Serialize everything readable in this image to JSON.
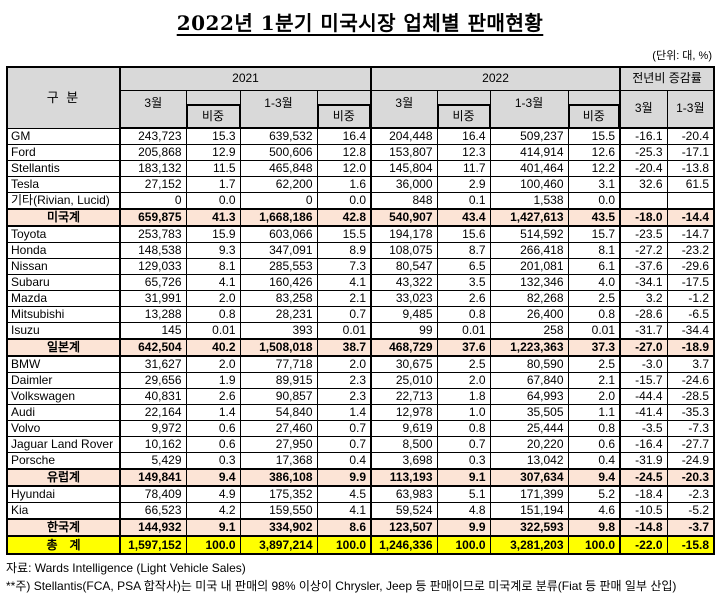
{
  "meta": {
    "title": "2022년 1분기  미국시장  업체별  판매현황",
    "unit_label": "(단위: 대, %)",
    "source_note": "자료: Wards Intelligence (Light Vehicle Sales)",
    "footnote": "**주) Stellantis(FCA, PSA 합작사)는 미국 내 판매의 98% 이상이 Chrysler, Jeep 등 판매이므로 미국계로 분류(Fiat 등 판매 일부 산입)"
  },
  "colors": {
    "header_bg": "#d9d9d9",
    "subtotal_bg": "#fce4d6",
    "total_bg": "#ffff00",
    "border": "#000000"
  },
  "table": {
    "headers": {
      "gubun": "구 분",
      "year_2021": "2021",
      "year_2022": "2022",
      "yoy": "전년비 증감률",
      "month": "3월",
      "share": "비중",
      "quarter": "1-3월"
    },
    "rows": [
      {
        "name": "GM",
        "type": "maker",
        "values": [
          "243,723",
          "15.3",
          "639,532",
          "16.4",
          "204,448",
          "16.4",
          "509,237",
          "15.5",
          "-16.1",
          "-20.4"
        ]
      },
      {
        "name": "Ford",
        "type": "maker",
        "values": [
          "205,868",
          "12.9",
          "500,606",
          "12.8",
          "153,807",
          "12.3",
          "414,914",
          "12.6",
          "-25.3",
          "-17.1"
        ]
      },
      {
        "name": "Stellantis",
        "type": "maker",
        "values": [
          "183,132",
          "11.5",
          "465,848",
          "12.0",
          "145,804",
          "11.7",
          "401,464",
          "12.2",
          "-20.4",
          "-13.8"
        ]
      },
      {
        "name": "Tesla",
        "type": "maker",
        "values": [
          "27,152",
          "1.7",
          "62,200",
          "1.6",
          "36,000",
          "2.9",
          "100,460",
          "3.1",
          "32.6",
          "61.5"
        ]
      },
      {
        "name": "기타(Rivian, Lucid)",
        "type": "maker",
        "values": [
          "0",
          "0.0",
          "0",
          "0.0",
          "848",
          "0.1",
          "1,538",
          "0.0",
          "",
          ""
        ]
      },
      {
        "name": "미국계",
        "type": "subtotal",
        "values": [
          "659,875",
          "41.3",
          "1,668,186",
          "42.8",
          "540,907",
          "43.4",
          "1,427,613",
          "43.5",
          "-18.0",
          "-14.4"
        ]
      },
      {
        "name": "Toyota",
        "type": "maker",
        "values": [
          "253,783",
          "15.9",
          "603,066",
          "15.5",
          "194,178",
          "15.6",
          "514,592",
          "15.7",
          "-23.5",
          "-14.7"
        ]
      },
      {
        "name": "Honda",
        "type": "maker",
        "values": [
          "148,538",
          "9.3",
          "347,091",
          "8.9",
          "108,075",
          "8.7",
          "266,418",
          "8.1",
          "-27.2",
          "-23.2"
        ]
      },
      {
        "name": "Nissan",
        "type": "maker",
        "values": [
          "129,033",
          "8.1",
          "285,553",
          "7.3",
          "80,547",
          "6.5",
          "201,081",
          "6.1",
          "-37.6",
          "-29.6"
        ]
      },
      {
        "name": "Subaru",
        "type": "maker",
        "values": [
          "65,726",
          "4.1",
          "160,426",
          "4.1",
          "43,322",
          "3.5",
          "132,346",
          "4.0",
          "-34.1",
          "-17.5"
        ]
      },
      {
        "name": "Mazda",
        "type": "maker",
        "values": [
          "31,991",
          "2.0",
          "83,258",
          "2.1",
          "33,023",
          "2.6",
          "82,268",
          "2.5",
          "3.2",
          "-1.2"
        ]
      },
      {
        "name": "Mitsubishi",
        "type": "maker",
        "values": [
          "13,288",
          "0.8",
          "28,231",
          "0.7",
          "9,485",
          "0.8",
          "26,400",
          "0.8",
          "-28.6",
          "-6.5"
        ]
      },
      {
        "name": "Isuzu",
        "type": "maker",
        "values": [
          "145",
          "0.01",
          "393",
          "0.01",
          "99",
          "0.01",
          "258",
          "0.01",
          "-31.7",
          "-34.4"
        ]
      },
      {
        "name": "일본계",
        "type": "subtotal",
        "values": [
          "642,504",
          "40.2",
          "1,508,018",
          "38.7",
          "468,729",
          "37.6",
          "1,223,363",
          "37.3",
          "-27.0",
          "-18.9"
        ]
      },
      {
        "name": "BMW",
        "type": "maker",
        "values": [
          "31,627",
          "2.0",
          "77,718",
          "2.0",
          "30,675",
          "2.5",
          "80,590",
          "2.5",
          "-3.0",
          "3.7"
        ]
      },
      {
        "name": "Daimler",
        "type": "maker",
        "values": [
          "29,656",
          "1.9",
          "89,915",
          "2.3",
          "25,010",
          "2.0",
          "67,840",
          "2.1",
          "-15.7",
          "-24.6"
        ]
      },
      {
        "name": "Volkswagen",
        "type": "maker",
        "values": [
          "40,831",
          "2.6",
          "90,857",
          "2.3",
          "22,713",
          "1.8",
          "64,993",
          "2.0",
          "-44.4",
          "-28.5"
        ]
      },
      {
        "name": "Audi",
        "type": "maker",
        "values": [
          "22,164",
          "1.4",
          "54,840",
          "1.4",
          "12,978",
          "1.0",
          "35,505",
          "1.1",
          "-41.4",
          "-35.3"
        ]
      },
      {
        "name": "Volvo",
        "type": "maker",
        "values": [
          "9,972",
          "0.6",
          "27,460",
          "0.7",
          "9,619",
          "0.8",
          "25,444",
          "0.8",
          "-3.5",
          "-7.3"
        ]
      },
      {
        "name": "Jaguar Land Rover",
        "type": "maker",
        "values": [
          "10,162",
          "0.6",
          "27,950",
          "0.7",
          "8,500",
          "0.7",
          "20,220",
          "0.6",
          "-16.4",
          "-27.7"
        ]
      },
      {
        "name": "Porsche",
        "type": "maker",
        "values": [
          "5,429",
          "0.3",
          "17,368",
          "0.4",
          "3,698",
          "0.3",
          "13,042",
          "0.4",
          "-31.9",
          "-24.9"
        ]
      },
      {
        "name": "유럽계",
        "type": "subtotal",
        "values": [
          "149,841",
          "9.4",
          "386,108",
          "9.9",
          "113,193",
          "9.1",
          "307,634",
          "9.4",
          "-24.5",
          "-20.3"
        ]
      },
      {
        "name": "Hyundai",
        "type": "maker",
        "values": [
          "78,409",
          "4.9",
          "175,352",
          "4.5",
          "63,983",
          "5.1",
          "171,399",
          "5.2",
          "-18.4",
          "-2.3"
        ]
      },
      {
        "name": "Kia",
        "type": "maker",
        "values": [
          "66,523",
          "4.2",
          "159,550",
          "4.1",
          "59,524",
          "4.8",
          "151,194",
          "4.6",
          "-10.5",
          "-5.2"
        ]
      },
      {
        "name": "한국계",
        "type": "subtotal",
        "values": [
          "144,932",
          "9.1",
          "334,902",
          "8.6",
          "123,507",
          "9.9",
          "322,593",
          "9.8",
          "-14.8",
          "-3.7"
        ]
      },
      {
        "name": "총　계",
        "type": "total",
        "values": [
          "1,597,152",
          "100.0",
          "3,897,214",
          "100.0",
          "1,246,336",
          "100.0",
          "3,281,203",
          "100.0",
          "-22.0",
          "-15.8"
        ]
      }
    ]
  }
}
